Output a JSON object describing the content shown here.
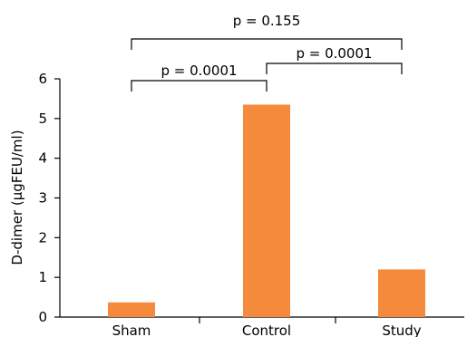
{
  "chart_data": {
    "type": "bar",
    "categories": [
      "Sham",
      "Control",
      "Study"
    ],
    "values": [
      0.37,
      5.35,
      1.2
    ],
    "ylabel": "D-dimer (µgFEU/ml)",
    "xlabel": "",
    "ylim": [
      0,
      6
    ],
    "yticks": [
      0,
      1,
      2,
      3,
      4,
      5,
      6
    ],
    "grid": false,
    "bar_color": "#f58a3c",
    "comparisons": [
      {
        "from": "Sham",
        "to": "Control",
        "label": "p = 0.0001"
      },
      {
        "from": "Control",
        "to": "Study",
        "label": "p = 0.0001"
      },
      {
        "from": "Sham",
        "to": "Study",
        "label": "p = 0.155"
      }
    ]
  }
}
